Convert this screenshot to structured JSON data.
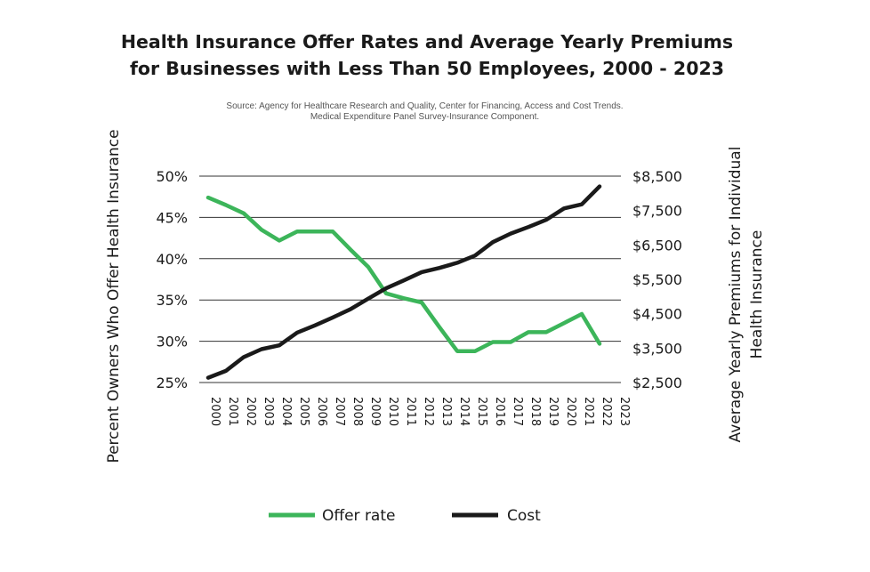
{
  "colors": {
    "offer_rate": "#3cb55a",
    "cost": "#1a1a1a",
    "grid": "#333333"
  },
  "header": {
    "title_line1": "Health Insurance Offer Rates and Average Yearly Premiums",
    "title_line2": "for Businesses with Less Than 50 Employees, 2000 - 2023",
    "source_line1": "Source: Agency for Healthcare Research and Quality, Center for Financing, Access and Cost Trends.",
    "source_line2": "Medical Expenditure Panel Survey-Insurance Component."
  },
  "chart_data": {
    "type": "line",
    "title": "Health Insurance Offer Rates and Average Yearly Premiums for Businesses with Less Than 50 Employees, 2000 - 2023",
    "ylabel": "Percent Owners Who Offer Health Insurance",
    "ylabel_right_line1": "Average Yearly Premiums for Individual",
    "ylabel_right_line2": "Health Insurance",
    "categories": [
      "2000",
      "2001",
      "2002",
      "2003",
      "2004",
      "2005",
      "2006",
      "2007",
      "2008",
      "2009",
      "2010",
      "2011",
      "2012",
      "2013",
      "2014",
      "2015",
      "2016",
      "2017",
      "2018",
      "2019",
      "2020",
      "2021",
      "2022",
      "2023"
    ],
    "left_axis": {
      "ylim": [
        25,
        50
      ],
      "ticks": [
        50,
        45,
        40,
        35,
        30,
        25
      ],
      "tick_labels": [
        "50%",
        "45%",
        "40%",
        "35%",
        "30%",
        "25%"
      ]
    },
    "right_axis": {
      "ylim": [
        2500,
        8500
      ],
      "ticks": [
        8500,
        7500,
        6500,
        5500,
        4500,
        3500,
        2500
      ],
      "tick_labels": [
        "$8,500",
        "$7,500",
        "$6,500",
        "$5,500",
        "$4,500",
        "$3,500",
        "$2,500"
      ]
    },
    "grid": true,
    "legend_position": "bottom",
    "series": [
      {
        "name": "Offer rate",
        "axis": "left",
        "values": [
          47.4,
          46.5,
          45.5,
          43.5,
          42.2,
          43.3,
          43.3,
          43.3,
          41.1,
          39.0,
          35.8,
          35.2,
          34.7,
          31.7,
          28.8,
          28.8,
          29.9,
          29.9,
          31.1,
          31.1,
          32.2,
          33.3,
          29.7,
          null
        ]
      },
      {
        "name": "Cost",
        "axis": "right",
        "values": [
          2640,
          2840,
          3240,
          3470,
          3580,
          3950,
          4160,
          4390,
          4630,
          4940,
          5240,
          5470,
          5710,
          5830,
          5980,
          6190,
          6580,
          6830,
          7020,
          7230,
          7560,
          7680,
          8200,
          null
        ]
      }
    ]
  }
}
